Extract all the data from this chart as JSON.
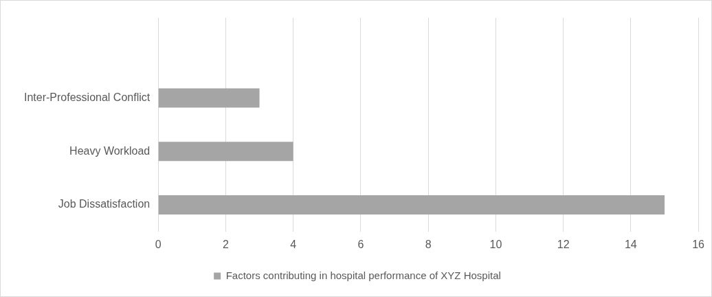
{
  "chart_data": {
    "type": "bar",
    "orientation": "horizontal",
    "categories": [
      null,
      "Inter-Professional Conflict",
      "Heavy Workload",
      "Job Dissatisfaction"
    ],
    "series": [
      {
        "name": "Factors contributing in hospital performance of XYZ Hospital",
        "color": "#a5a5a5",
        "values": [
          null,
          3,
          4,
          15
        ]
      }
    ],
    "xlim": [
      0,
      16
    ],
    "xticks": [
      0,
      2,
      4,
      6,
      8,
      10,
      12,
      14,
      16
    ],
    "grid": "x",
    "legend": "bottom"
  }
}
